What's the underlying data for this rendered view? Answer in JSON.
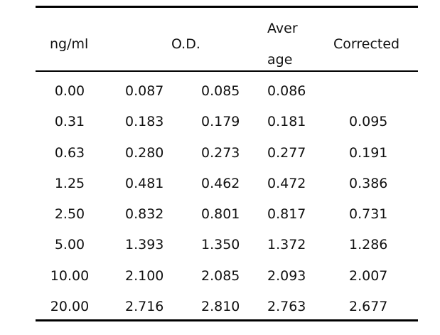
{
  "table": {
    "headers": {
      "conc": "ng/ml",
      "od": "O.D.",
      "average_line1": "Aver",
      "average_line2": "age",
      "corrected": "Corrected"
    },
    "rows": [
      [
        "0.00",
        "0.087",
        "0.085",
        "0.086",
        ""
      ],
      [
        "0.31",
        "0.183",
        "0.179",
        "0.181",
        "0.095"
      ],
      [
        "0.63",
        "0.280",
        "0.273",
        "0.277",
        "0.191"
      ],
      [
        "1.25",
        "0.481",
        "0.462",
        "0.472",
        "0.386"
      ],
      [
        "2.50",
        "0.832",
        "0.801",
        "0.817",
        "0.731"
      ],
      [
        "5.00",
        "1.393",
        "1.350",
        "1.372",
        "1.286"
      ],
      [
        "10.00",
        "2.100",
        "2.085",
        "2.093",
        "2.007"
      ],
      [
        "20.00",
        "2.716",
        "2.810",
        "2.763",
        "2.677"
      ]
    ]
  }
}
